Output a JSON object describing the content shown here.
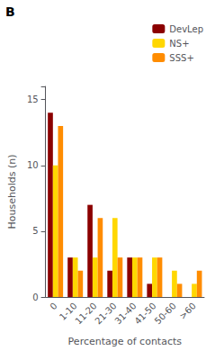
{
  "chart_data": {
    "type": "bar",
    "xlabel": "Percentage of contacts",
    "ylabel": "Households (n)",
    "categories": [
      "0",
      "1-10",
      "11-20",
      "21-30",
      "31-40",
      "41-50",
      "50-60",
      ">60"
    ],
    "series": [
      {
        "name": "DevLep",
        "color": "#8B0000",
        "values": [
          14,
          3,
          7,
          2,
          3,
          1,
          0,
          0
        ]
      },
      {
        "name": "NS+",
        "color": "#FFD700",
        "values": [
          10,
          3,
          3,
          6,
          3,
          3,
          2,
          1
        ]
      },
      {
        "name": "SSS+",
        "color": "#FF8C00",
        "values": [
          13,
          2,
          6,
          3,
          3,
          3,
          1,
          2
        ]
      }
    ],
    "ylim": [
      0,
      16
    ],
    "yticks": [
      0,
      5,
      10,
      15
    ],
    "grid": false,
    "legend": "upper right",
    "annotations": [
      "B"
    ]
  }
}
